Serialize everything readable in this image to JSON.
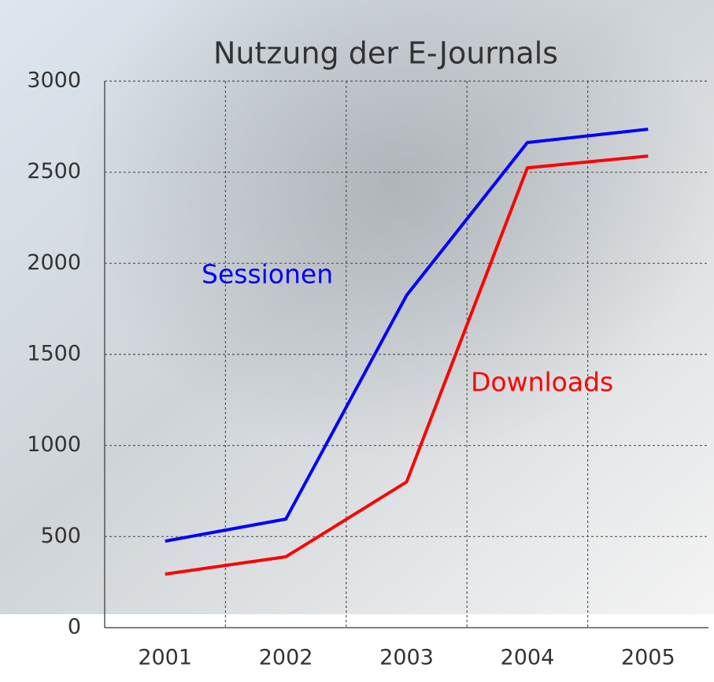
{
  "chart_data": {
    "type": "line",
    "title": "Nutzung der E-Journals",
    "categories": [
      "2001",
      "2002",
      "2003",
      "2004",
      "2005"
    ],
    "series": [
      {
        "name": "Sessionen",
        "color": "#0000ff",
        "values": [
          475,
          596,
          1824,
          2663,
          2736
        ]
      },
      {
        "name": "Downloads",
        "color": "#ff0000",
        "values": [
          294,
          389,
          800,
          2524,
          2589
        ]
      }
    ],
    "ylim": [
      0,
      3000
    ],
    "yticks": [
      0,
      500,
      1000,
      1500,
      2000,
      2500,
      3000
    ],
    "grid": true
  }
}
